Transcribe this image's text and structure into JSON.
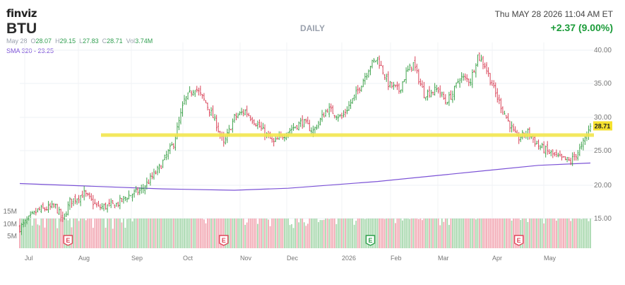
{
  "header": {
    "logo": "finviz",
    "ticker": "BTU",
    "ohlc_date": "May 28",
    "open_label": "O",
    "open": "28.07",
    "high_label": "H",
    "high": "29.15",
    "low_label": "L",
    "low": "27.83",
    "close_label": "C",
    "close": "28.71",
    "volume_label": "Vol",
    "volume": "3.74M",
    "sma_label": "SMA 320 - 23.25",
    "period": "DAILY",
    "datetime": "Thu MAY 28 2026 11:04 AM ET",
    "change": "+2.37 (9.00%)"
  },
  "colors": {
    "up": "#3fa34d",
    "down": "#d9455a",
    "vol_up": "#a8d8ae",
    "vol_down": "#f2a9b4",
    "sma": "#7b52d6",
    "level_line": "#f2e64d",
    "price_tag": "#f5e12e",
    "earnings_red": "#e0475a",
    "earnings_green": "#2c9e4a"
  },
  "chart_data": {
    "type": "ohlc",
    "title": "BTU",
    "period": "DAILY",
    "x_ticks": [
      "Jul",
      "Aug",
      "Sep",
      "Oct",
      "Nov",
      "Dec",
      "2026",
      "Feb",
      "Mar",
      "Apr",
      "May"
    ],
    "y_ticks": [
      "15.00",
      "20.00",
      "25.00",
      "30.00",
      "35.00",
      "40.00"
    ],
    "ylim": [
      12.5,
      41.5
    ],
    "volume_ticks": [
      "5M",
      "10M",
      "15M"
    ],
    "last_price_label": "28.71",
    "horizontal_level": 27.4,
    "sma_series": {
      "name": "SMA 320",
      "points": [
        [
          0,
          20.2
        ],
        [
          40,
          19.8
        ],
        [
          80,
          19.4
        ],
        [
          120,
          19.2
        ],
        [
          150,
          19.5
        ],
        [
          200,
          20.5
        ],
        [
          230,
          21.3
        ],
        [
          260,
          22.1
        ],
        [
          290,
          22.9
        ],
        [
          319,
          23.25
        ]
      ]
    },
    "price_path": [
      [
        0,
        13.6
      ],
      [
        10,
        16.2
      ],
      [
        20,
        16.8
      ],
      [
        24,
        14.7
      ],
      [
        28,
        17.5
      ],
      [
        36,
        18.7
      ],
      [
        44,
        16.6
      ],
      [
        54,
        17.1
      ],
      [
        60,
        18.3
      ],
      [
        68,
        19.2
      ],
      [
        78,
        22.5
      ],
      [
        86,
        26.2
      ],
      [
        92,
        32.5
      ],
      [
        98,
        34.5
      ],
      [
        104,
        32.2
      ],
      [
        110,
        29.0
      ],
      [
        114,
        26.0
      ],
      [
        120,
        30.0
      ],
      [
        126,
        31.0
      ],
      [
        134,
        28.6
      ],
      [
        142,
        26.2
      ],
      [
        150,
        28.0
      ],
      [
        158,
        29.4
      ],
      [
        164,
        28.0
      ],
      [
        172,
        31.3
      ],
      [
        180,
        30.0
      ],
      [
        188,
        33.5
      ],
      [
        196,
        37.8
      ],
      [
        200,
        38.8
      ],
      [
        206,
        35.0
      ],
      [
        212,
        34.0
      ],
      [
        216,
        36.6
      ],
      [
        220,
        38.0
      ],
      [
        226,
        33.5
      ],
      [
        234,
        34.2
      ],
      [
        238,
        32.3
      ],
      [
        242,
        33.5
      ],
      [
        246,
        36.0
      ],
      [
        252,
        35.5
      ],
      [
        256,
        39.2
      ],
      [
        260,
        37.8
      ],
      [
        266,
        33.5
      ],
      [
        272,
        30.0
      ],
      [
        278,
        26.8
      ],
      [
        284,
        27.8
      ],
      [
        290,
        25.8
      ],
      [
        296,
        24.8
      ],
      [
        302,
        23.9
      ],
      [
        308,
        23.5
      ],
      [
        314,
        25.6
      ],
      [
        319,
        28.7
      ]
    ],
    "volume_path": [
      [
        0,
        4.5
      ],
      [
        30,
        3.8
      ],
      [
        60,
        4.0
      ],
      [
        80,
        7.0
      ],
      [
        100,
        5.0
      ],
      [
        130,
        4.5
      ],
      [
        160,
        3.6
      ],
      [
        190,
        4.5
      ],
      [
        220,
        4.2
      ],
      [
        250,
        4.8
      ],
      [
        270,
        6.0
      ],
      [
        295,
        4.0
      ],
      [
        319,
        3.74
      ]
    ],
    "earnings": [
      {
        "index": 27,
        "label": "E"
      },
      {
        "index": 114,
        "label": "E"
      },
      {
        "index": 196,
        "label": "E"
      },
      {
        "index": 279,
        "label": "E"
      }
    ]
  }
}
